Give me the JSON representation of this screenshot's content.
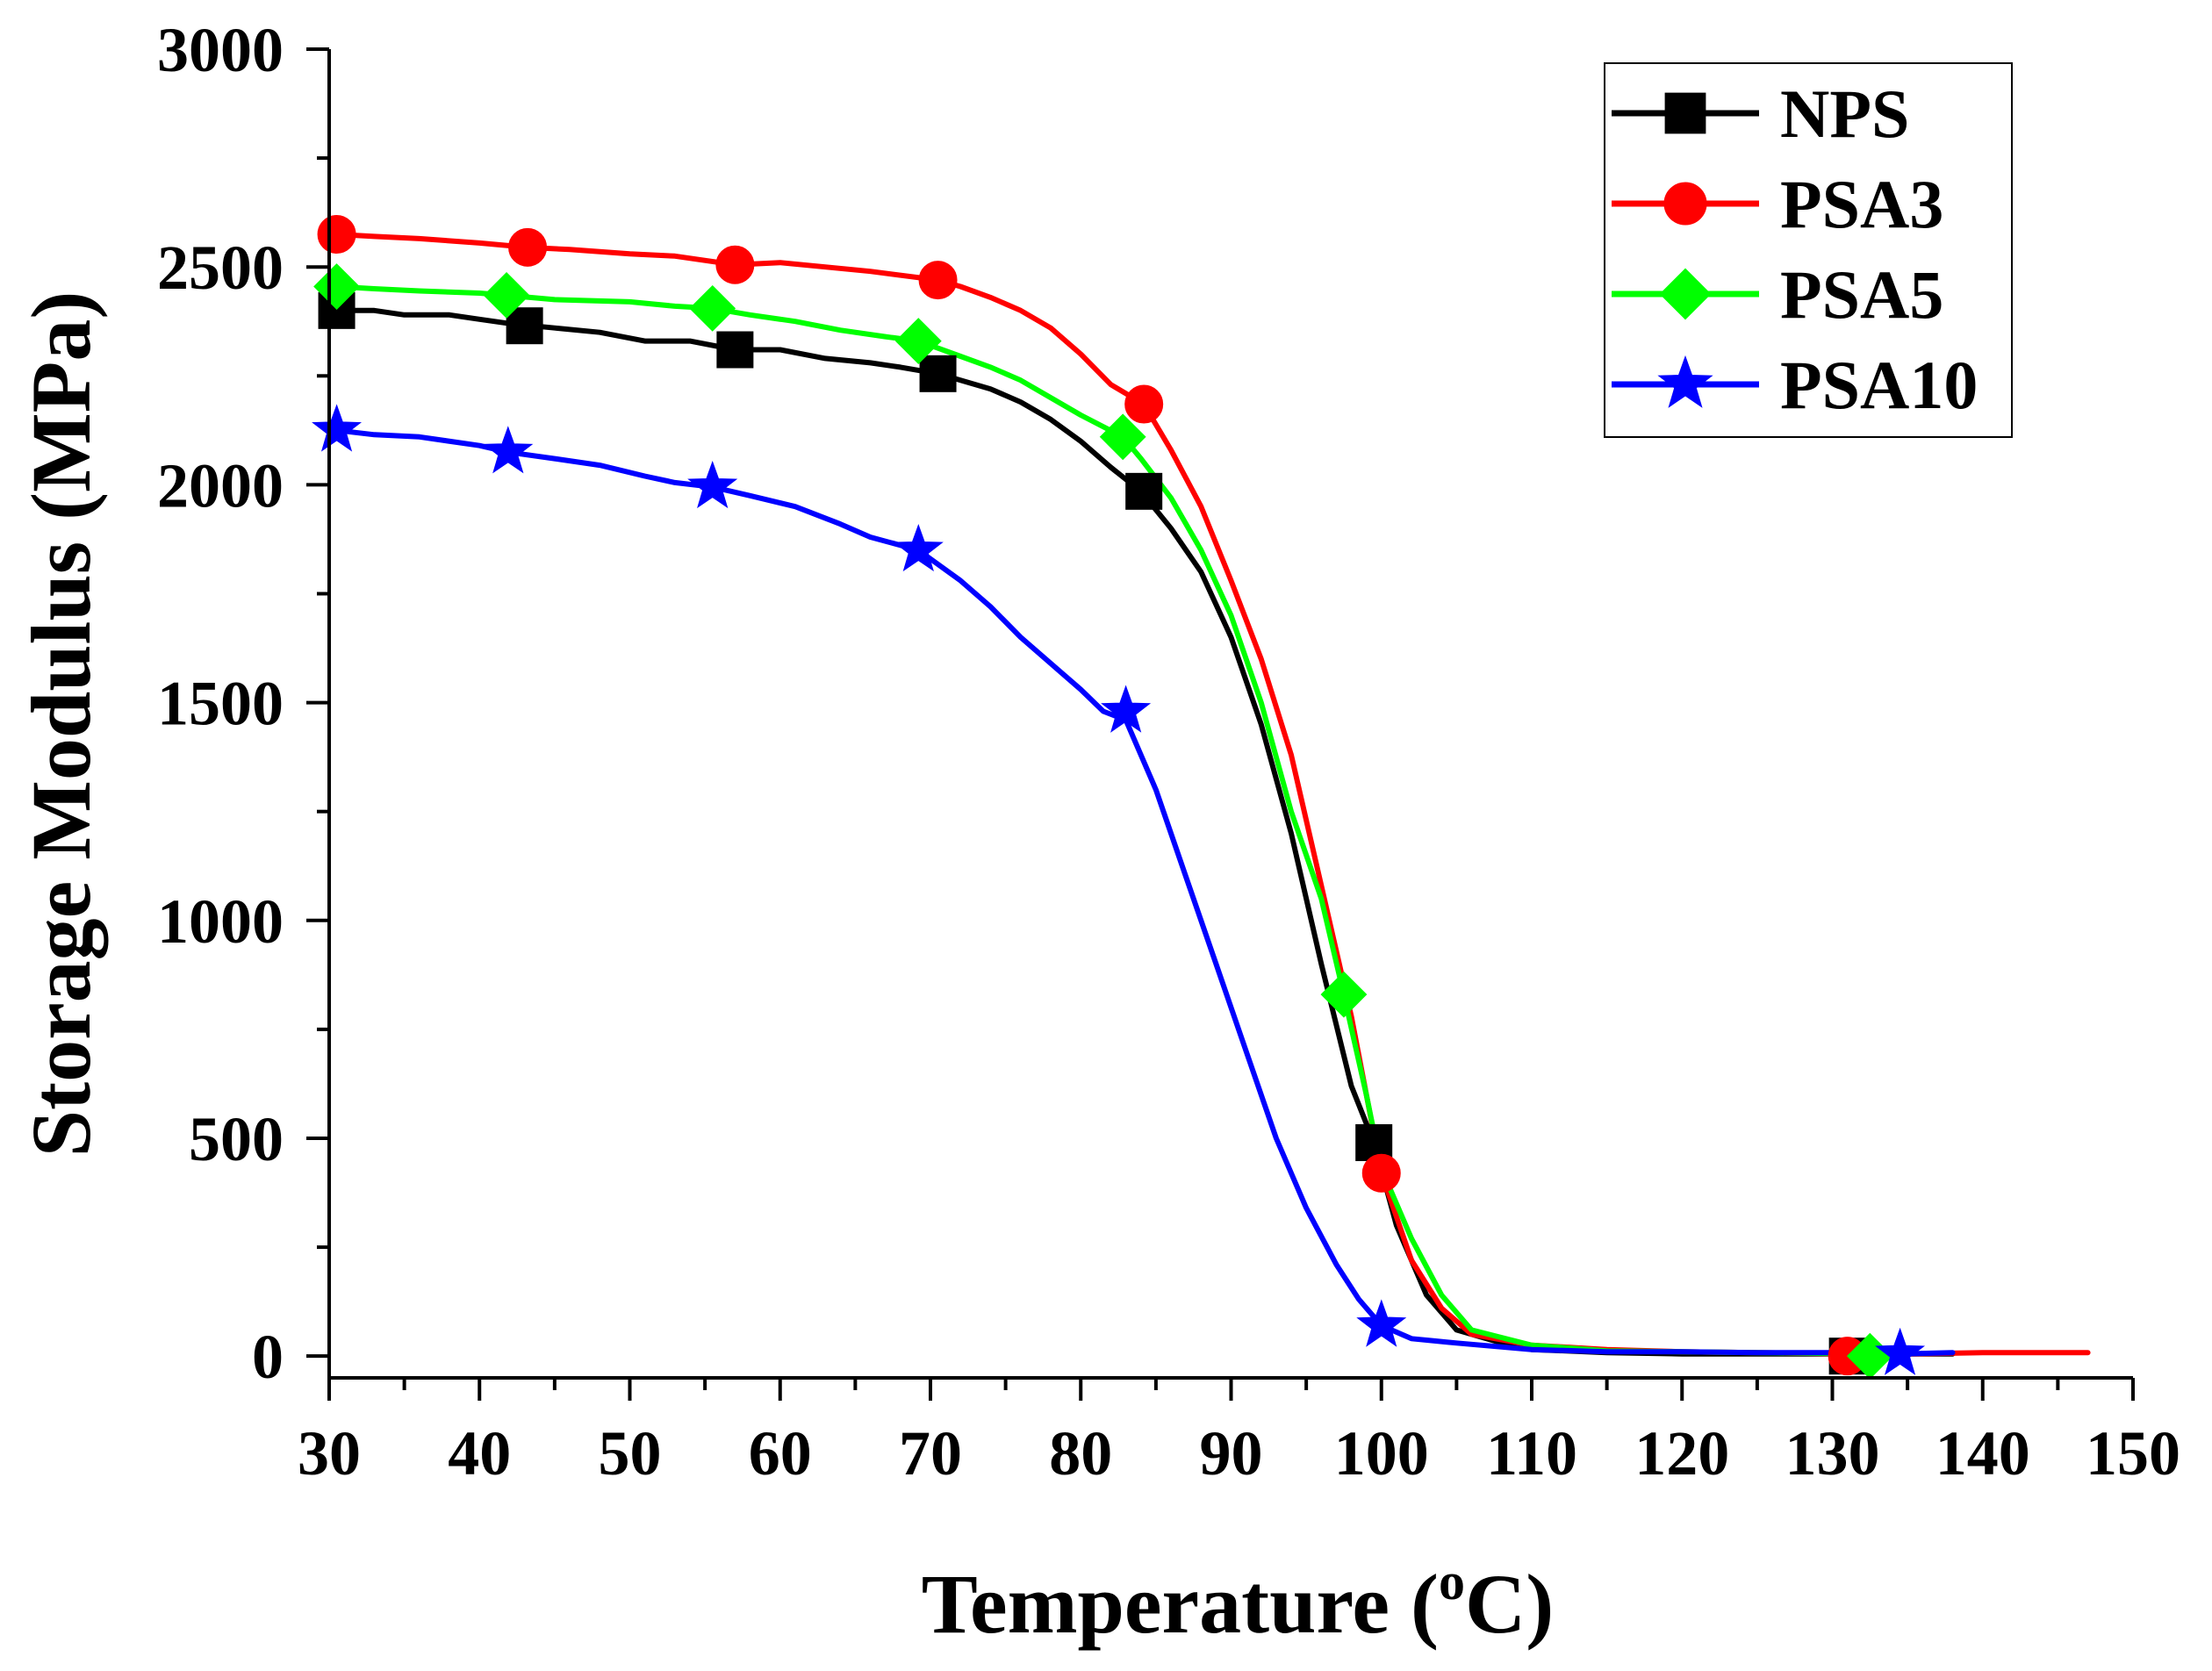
{
  "chart_data": {
    "type": "line",
    "title": "",
    "xlabel": "Temperature (",
    "xlabel_sup": "o",
    "xlabel_unit": "C)",
    "ylabel": "Storage Modulus (MPa)",
    "xlim": [
      30,
      150
    ],
    "ylim": [
      -50,
      3000
    ],
    "xticks": [
      30,
      40,
      50,
      60,
      70,
      80,
      90,
      100,
      110,
      120,
      130,
      140,
      150
    ],
    "xtick_labels": [
      "30",
      "40",
      "50",
      "60",
      "70",
      "80",
      "90",
      "100",
      "110",
      "120",
      "130",
      "140",
      "150"
    ],
    "yticks": [
      0,
      500,
      1000,
      1500,
      2000,
      2500,
      3000
    ],
    "ytick_labels": [
      "0",
      "500",
      "1000",
      "1500",
      "2000",
      "2500",
      "3000"
    ],
    "grid": false,
    "legend_position": "top-right",
    "series": [
      {
        "name": "NPS",
        "color": "#000000",
        "marker": "square",
        "x": [
          30.5,
          33,
          35,
          38,
          40,
          42,
          45,
          48,
          51,
          54,
          57,
          60,
          63,
          66,
          68,
          70.5,
          72,
          74,
          76,
          78,
          80,
          82,
          84,
          86,
          88,
          90,
          92,
          94,
          96,
          98,
          99.5,
          101,
          103,
          105,
          108,
          110,
          115,
          120,
          125,
          131,
          135,
          138
        ],
        "y": [
          2400,
          2400,
          2390,
          2390,
          2380,
          2370,
          2360,
          2350,
          2330,
          2330,
          2310,
          2310,
          2290,
          2280,
          2270,
          2255,
          2240,
          2220,
          2190,
          2150,
          2100,
          2040,
          1985,
          1900,
          1800,
          1650,
          1450,
          1200,
          900,
          620,
          490,
          300,
          140,
          60,
          30,
          15,
          8,
          5,
          5,
          5,
          5,
          5
        ],
        "marker_x": [
          30.5,
          43,
          57,
          70.5,
          84.2,
          99.5,
          131
        ],
        "marker_y": [
          2400,
          2365,
          2310,
          2255,
          1985,
          490,
          0
        ]
      },
      {
        "name": "PSA3",
        "color": "#ff0000",
        "marker": "circle",
        "x": [
          30.5,
          33,
          36,
          40,
          43.2,
          46,
          50,
          53,
          57,
          60,
          63,
          66,
          70.5,
          72,
          74,
          76,
          78,
          80,
          82,
          84.2,
          86,
          88,
          90,
          92,
          94,
          96,
          98,
          100,
          102,
          104,
          106,
          110,
          115,
          120,
          125,
          131,
          135,
          140,
          147
        ],
        "y": [
          2575,
          2570,
          2565,
          2555,
          2545,
          2540,
          2530,
          2525,
          2505,
          2510,
          2500,
          2490,
          2470,
          2455,
          2430,
          2400,
          2360,
          2300,
          2230,
          2185,
          2080,
          1950,
          1780,
          1600,
          1380,
          1080,
          780,
          420,
          220,
          110,
          50,
          25,
          15,
          10,
          8,
          5,
          5,
          8,
          8
        ],
        "marker_x": [
          30.5,
          43.2,
          57,
          70.5,
          84.2,
          100,
          131
        ],
        "marker_y": [
          2575,
          2545,
          2505,
          2470,
          2185,
          420,
          0
        ]
      },
      {
        "name": "PSA5",
        "color": "#00ff00",
        "marker": "diamond",
        "x": [
          30.5,
          33,
          36,
          40,
          41.8,
          45,
          50,
          53,
          55.5,
          58,
          61,
          64,
          67,
          69.2,
          72,
          74,
          76,
          78,
          80,
          82.8,
          84,
          86,
          88,
          90,
          92,
          94,
          96,
          97.5,
          99,
          100,
          102,
          104,
          106,
          110,
          115,
          120,
          125,
          132.5,
          135
        ],
        "y": [
          2455,
          2450,
          2445,
          2440,
          2435,
          2425,
          2420,
          2410,
          2405,
          2390,
          2375,
          2355,
          2340,
          2330,
          2295,
          2270,
          2240,
          2200,
          2160,
          2110,
          2060,
          1970,
          1850,
          1700,
          1500,
          1250,
          1050,
          830,
          600,
          430,
          270,
          140,
          60,
          25,
          12,
          10,
          8,
          5,
          5
        ],
        "marker_x": [
          30.5,
          41.8,
          55.5,
          69.2,
          82.8,
          97.5,
          132.5
        ],
        "marker_y": [
          2455,
          2435,
          2405,
          2330,
          2110,
          830,
          0
        ]
      },
      {
        "name": "PSA10",
        "color": "#0000ff",
        "marker": "star",
        "x": [
          30.5,
          33,
          36,
          40,
          41.9,
          45,
          48,
          51,
          53,
          55.5,
          58,
          61,
          64,
          66,
          69.2,
          72,
          74,
          76,
          78,
          80,
          81.5,
          83,
          85,
          87,
          89,
          91,
          93,
          95,
          97,
          98.5,
          100,
          102,
          105,
          110,
          115,
          120,
          125,
          130,
          134.5,
          138
        ],
        "y": [
          2125,
          2115,
          2110,
          2090,
          2075,
          2060,
          2045,
          2020,
          2005,
          1995,
          1975,
          1950,
          1910,
          1880,
          1850,
          1780,
          1720,
          1650,
          1590,
          1530,
          1480,
          1460,
          1300,
          1100,
          900,
          700,
          500,
          340,
          210,
          130,
          70,
          40,
          30,
          15,
          10,
          10,
          8,
          8,
          5,
          8
        ],
        "marker_x": [
          30.5,
          41.9,
          55.5,
          69.2,
          83,
          100,
          134.5
        ],
        "marker_y": [
          2125,
          2075,
          1995,
          1850,
          1480,
          70,
          5
        ]
      }
    ]
  }
}
